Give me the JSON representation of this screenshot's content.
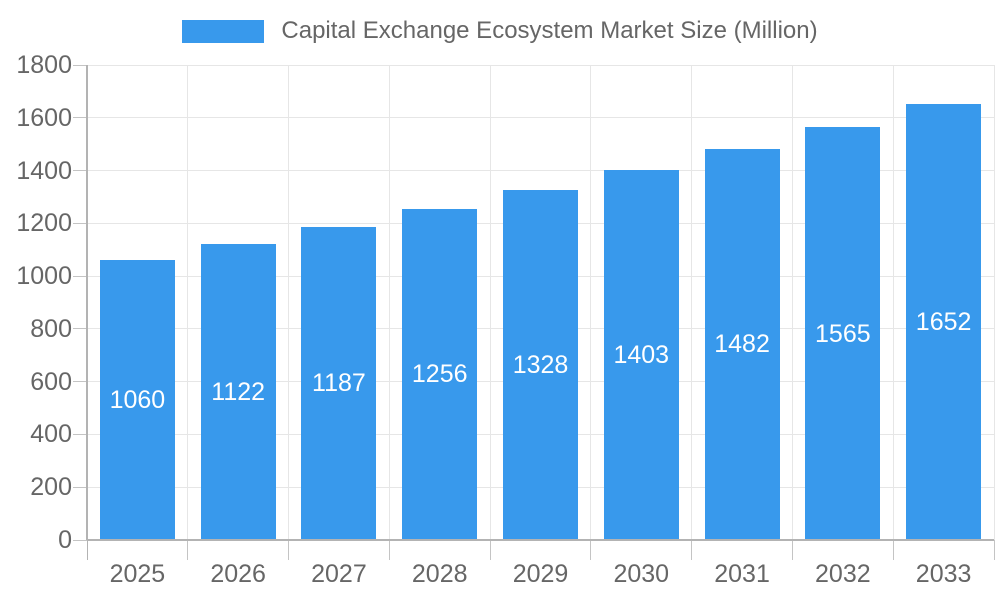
{
  "chart_data": {
    "type": "bar",
    "title": "Capital Exchange Ecosystem Market Size (Million)",
    "legend": [
      "Capital Exchange Ecosystem Market Size (Million)"
    ],
    "legend_position": "top",
    "categories": [
      "2025",
      "2026",
      "2027",
      "2028",
      "2029",
      "2030",
      "2031",
      "2032",
      "2033"
    ],
    "values": [
      1060,
      1122,
      1187,
      1256,
      1328,
      1403,
      1482,
      1565,
      1652
    ],
    "bar_label_position": "inside-center",
    "xlabel": "",
    "ylabel": "",
    "ylim": [
      0,
      1800
    ],
    "ytick_step": 200,
    "ytick_labels": [
      "0",
      "200",
      "400",
      "600",
      "800",
      "1000",
      "1200",
      "1400",
      "1600",
      "1800"
    ],
    "grid": true,
    "colors": {
      "bar": "#3899EC",
      "bar_label": "#FFFFFF",
      "axis_text": "#666666",
      "gridline": "#E6E6E6",
      "axis_line": "#B3B3B3",
      "tick": "#C4C4C4",
      "background": "#FFFFFF"
    }
  }
}
